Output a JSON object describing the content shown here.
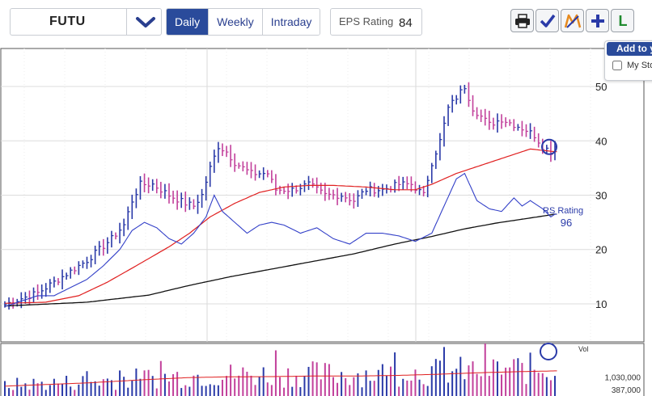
{
  "toolbar": {
    "ticker": "FUTU",
    "tabs": [
      {
        "label": "Daily",
        "active": true
      },
      {
        "label": "Weekly",
        "active": false
      },
      {
        "label": "Intraday",
        "active": false
      }
    ],
    "eps_label": "EPS Rating",
    "eps_value": "84",
    "tools": [
      "print-icon",
      "check-icon",
      "logo-icon",
      "plus-icon",
      "letter-l-icon"
    ],
    "tools_text": {
      "letter": "L"
    }
  },
  "popup": {
    "title": "Add to y",
    "checkbox_label": "My Sto"
  },
  "colors": {
    "accent": "#2a4b9b",
    "up_bar": "#2a3aa8",
    "down_bar": "#c2409b",
    "ma50": "#e02020",
    "ma200": "#111111",
    "rs_line": "#3340c8"
  },
  "chart_data": {
    "type": "line",
    "price": {
      "y_ticks": [
        10,
        20,
        30,
        40,
        50
      ],
      "ylim": [
        3,
        57
      ],
      "n": 135,
      "highlight_circle": "last bar",
      "price_path": [
        [
          0,
          9.9
        ],
        [
          4,
          11
        ],
        [
          8,
          12
        ],
        [
          12,
          14
        ],
        [
          16,
          16
        ],
        [
          20,
          18
        ],
        [
          23,
          20
        ],
        [
          26,
          22
        ],
        [
          29,
          24.5
        ],
        [
          31,
          29
        ],
        [
          33,
          32
        ],
        [
          36,
          32
        ],
        [
          40,
          30
        ],
        [
          44,
          28.5
        ],
        [
          46,
          28
        ],
        [
          48,
          30
        ],
        [
          50,
          35
        ],
        [
          52,
          39
        ],
        [
          54,
          38
        ],
        [
          56,
          36
        ],
        [
          60,
          34
        ],
        [
          64,
          34
        ],
        [
          66,
          31
        ],
        [
          70,
          31
        ],
        [
          74,
          32
        ],
        [
          78,
          30
        ],
        [
          82,
          30
        ],
        [
          85,
          29
        ],
        [
          88,
          31
        ],
        [
          92,
          31
        ],
        [
          96,
          32
        ],
        [
          99,
          32
        ],
        [
          102,
          30
        ],
        [
          104,
          36
        ],
        [
          106,
          40
        ],
        [
          108,
          46
        ],
        [
          110,
          48
        ],
        [
          112,
          50
        ],
        [
          114,
          46
        ],
        [
          118,
          43
        ],
        [
          121,
          44
        ],
        [
          124,
          43
        ],
        [
          127,
          42
        ],
        [
          129,
          41
        ],
        [
          131,
          39
        ],
        [
          133,
          38
        ],
        [
          134,
          39
        ]
      ],
      "ma50_path": [
        [
          0,
          10.1
        ],
        [
          10,
          10.3
        ],
        [
          18,
          11.5
        ],
        [
          25,
          14
        ],
        [
          32,
          17
        ],
        [
          40,
          20.5
        ],
        [
          45,
          23
        ],
        [
          50,
          26
        ],
        [
          56,
          28.5
        ],
        [
          62,
          30.5
        ],
        [
          68,
          31.5
        ],
        [
          74,
          31.8
        ],
        [
          80,
          31.8
        ],
        [
          88,
          31.5
        ],
        [
          95,
          31
        ],
        [
          100,
          31
        ],
        [
          104,
          32
        ],
        [
          110,
          34
        ],
        [
          116,
          35.5
        ],
        [
          122,
          37
        ],
        [
          128,
          38.5
        ],
        [
          134,
          38
        ]
      ],
      "ma200_path": [
        [
          0,
          9.6
        ],
        [
          20,
          10.3
        ],
        [
          35,
          11.6
        ],
        [
          45,
          13.4
        ],
        [
          55,
          15
        ],
        [
          65,
          16.4
        ],
        [
          75,
          17.8
        ],
        [
          85,
          19.2
        ],
        [
          95,
          21
        ],
        [
          104,
          22.4
        ],
        [
          112,
          23.8
        ],
        [
          120,
          24.9
        ],
        [
          128,
          25.8
        ],
        [
          134,
          26.5
        ]
      ],
      "rs_path": [
        [
          0,
          9.5
        ],
        [
          4,
          10.5
        ],
        [
          8,
          11.5
        ],
        [
          12,
          11.5
        ],
        [
          16,
          13
        ],
        [
          20,
          14.5
        ],
        [
          24,
          17
        ],
        [
          28,
          20
        ],
        [
          31,
          23.5
        ],
        [
          34,
          25
        ],
        [
          37,
          24
        ],
        [
          40,
          22
        ],
        [
          43,
          21
        ],
        [
          46,
          23
        ],
        [
          49,
          26
        ],
        [
          51,
          30
        ],
        [
          53,
          27
        ],
        [
          56,
          25
        ],
        [
          59,
          23
        ],
        [
          62,
          24.5
        ],
        [
          65,
          25
        ],
        [
          68,
          24.5
        ],
        [
          72,
          23
        ],
        [
          76,
          24
        ],
        [
          80,
          22
        ],
        [
          84,
          21
        ],
        [
          86,
          22
        ],
        [
          88,
          23
        ],
        [
          92,
          23
        ],
        [
          96,
          22.5
        ],
        [
          100,
          21.5
        ],
        [
          104,
          23
        ],
        [
          107,
          28
        ],
        [
          110,
          33
        ],
        [
          112,
          34
        ],
        [
          115,
          29
        ],
        [
          118,
          27.5
        ],
        [
          121,
          27
        ],
        [
          124,
          29.5
        ],
        [
          126,
          28
        ],
        [
          128,
          29
        ],
        [
          131,
          27.5
        ],
        [
          133,
          26
        ],
        [
          134,
          26.5
        ]
      ],
      "rs_label": "RS Rating",
      "rs_value": "96"
    },
    "volume": {
      "label": "Vol",
      "y_labels": [
        "1,030,000",
        "387,000"
      ],
      "y_label_values": [
        1030000,
        387000
      ],
      "ylim": [
        0,
        2800000
      ],
      "avg_path": [
        [
          0,
          560000
        ],
        [
          20,
          730000
        ],
        [
          35,
          910000
        ],
        [
          45,
          1010000
        ],
        [
          55,
          1050000
        ],
        [
          65,
          1060000
        ],
        [
          75,
          1090000
        ],
        [
          85,
          1090000
        ],
        [
          95,
          1120000
        ],
        [
          105,
          1180000
        ],
        [
          115,
          1260000
        ],
        [
          125,
          1320000
        ],
        [
          134,
          1360000
        ]
      ],
      "highlight_circle": "last bar"
    }
  }
}
